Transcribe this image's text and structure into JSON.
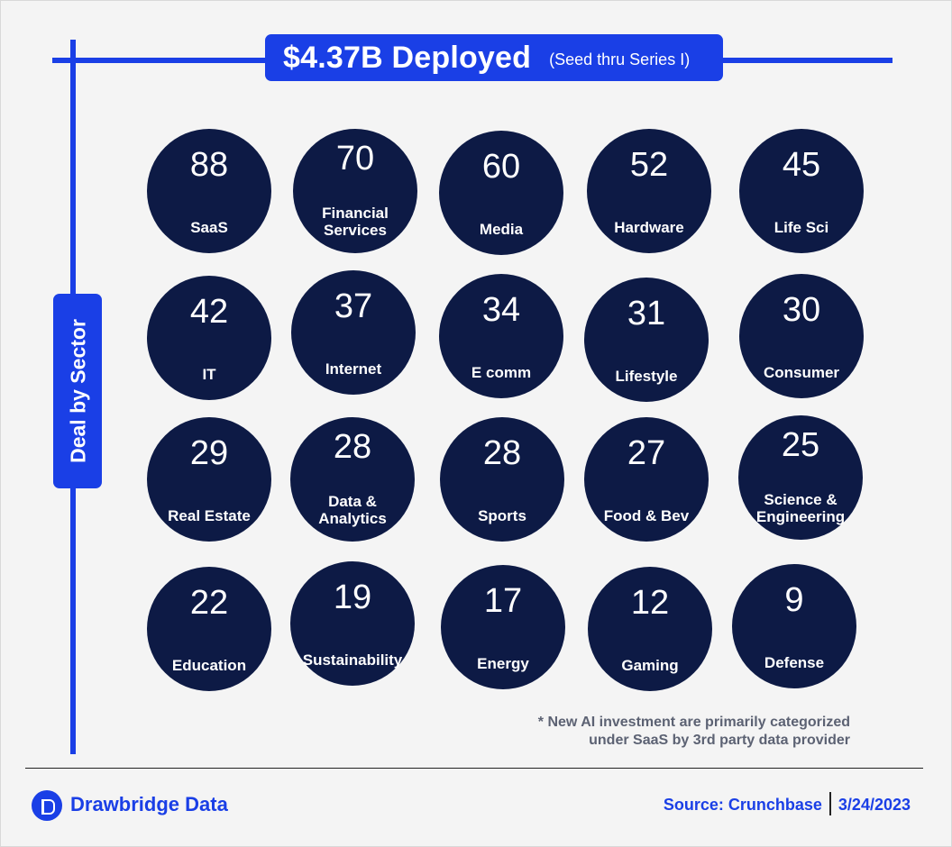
{
  "header": {
    "title": "$4.37B Deployed",
    "subtitle": "(Seed thru Series I)"
  },
  "side_label": "Deal by Sector",
  "chart_data": {
    "type": "bubble-grid",
    "title": "$4.37B Deployed",
    "subtitle": "(Seed thru Series I)",
    "axis_label": "Deal by Sector",
    "items": [
      {
        "value": 88,
        "label": "SaaS"
      },
      {
        "value": 70,
        "label": "Financial Services"
      },
      {
        "value": 60,
        "label": "Media"
      },
      {
        "value": 52,
        "label": "Hardware"
      },
      {
        "value": 45,
        "label": "Life Sci"
      },
      {
        "value": 42,
        "label": "IT"
      },
      {
        "value": 37,
        "label": "Internet"
      },
      {
        "value": 34,
        "label": "E comm"
      },
      {
        "value": 31,
        "label": "Lifestyle"
      },
      {
        "value": 30,
        "label": "Consumer"
      },
      {
        "value": 29,
        "label": "Real Estate"
      },
      {
        "value": 28,
        "label": "Data & Analytics"
      },
      {
        "value": 28,
        "label": "Sports"
      },
      {
        "value": 27,
        "label": "Food & Bev"
      },
      {
        "value": 25,
        "label": "Science & Engineering"
      },
      {
        "value": 22,
        "label": "Education"
      },
      {
        "value": 19,
        "label": "Sustainability"
      },
      {
        "value": 17,
        "label": "Energy"
      },
      {
        "value": 12,
        "label": "Gaming"
      },
      {
        "value": 9,
        "label": "Defense"
      }
    ],
    "bubble_color": "#0d1a45",
    "accent_color": "#1a3fe6"
  },
  "footnote": {
    "line1": "* New AI investment are primarily categorized",
    "line2": "under SaaS by 3rd party data provider"
  },
  "footer": {
    "brand": "Drawbridge Data",
    "logo_icon": "drawbridge-d-icon",
    "source": "Source: Crunchbase",
    "date": "3/24/2023"
  }
}
